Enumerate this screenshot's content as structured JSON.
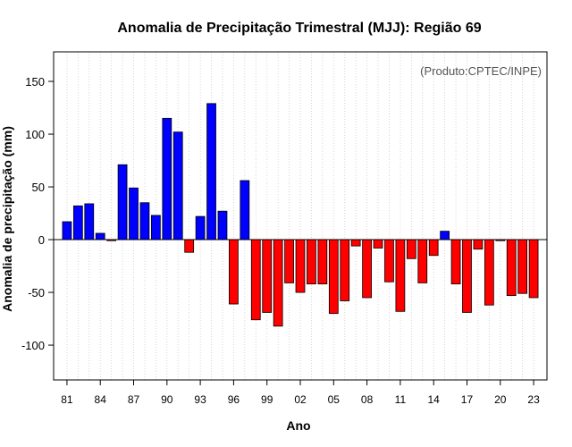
{
  "chart_data": {
    "type": "bar",
    "title": "Anomalia de Precipitação Trimestral (MJJ): Região 69",
    "xlabel": "Ano",
    "ylabel": "Anomalia de precipitação (mm)",
    "annotation": "(Produto:CPTEC/INPE)",
    "ylim": [
      -133,
      178
    ],
    "yticks": [
      -100,
      -50,
      0,
      50,
      100,
      150
    ],
    "xtick_labels": [
      "81",
      "84",
      "87",
      "90",
      "93",
      "96",
      "99",
      "02",
      "05",
      "08",
      "11",
      "14",
      "17",
      "20",
      "23"
    ],
    "categories": [
      "1981",
      "1982",
      "1983",
      "1984",
      "1985",
      "1986",
      "1987",
      "1988",
      "1989",
      "1990",
      "1991",
      "1992",
      "1993",
      "1994",
      "1995",
      "1996",
      "1997",
      "1998",
      "1999",
      "2000",
      "2001",
      "2002",
      "2003",
      "2004",
      "2005",
      "2006",
      "2007",
      "2008",
      "2009",
      "2010",
      "2011",
      "2012",
      "2013",
      "2014",
      "2015",
      "2016",
      "2017",
      "2018",
      "2019",
      "2020",
      "2021",
      "2022",
      "2023"
    ],
    "values": [
      17,
      32,
      34,
      6,
      -1,
      71,
      49,
      35,
      23,
      115,
      102,
      -12,
      22,
      129,
      27,
      -61,
      56,
      -76,
      -69,
      -82,
      -41,
      -50,
      -42,
      -42,
      -70,
      -58,
      -6,
      -55,
      -8,
      -40,
      -68,
      -18,
      -41,
      -15,
      8,
      -42,
      -69,
      -9,
      -62,
      -1,
      -53,
      -51,
      -55
    ],
    "positive_color": "#0000ff",
    "negative_color": "#ff0000",
    "grid": true
  }
}
